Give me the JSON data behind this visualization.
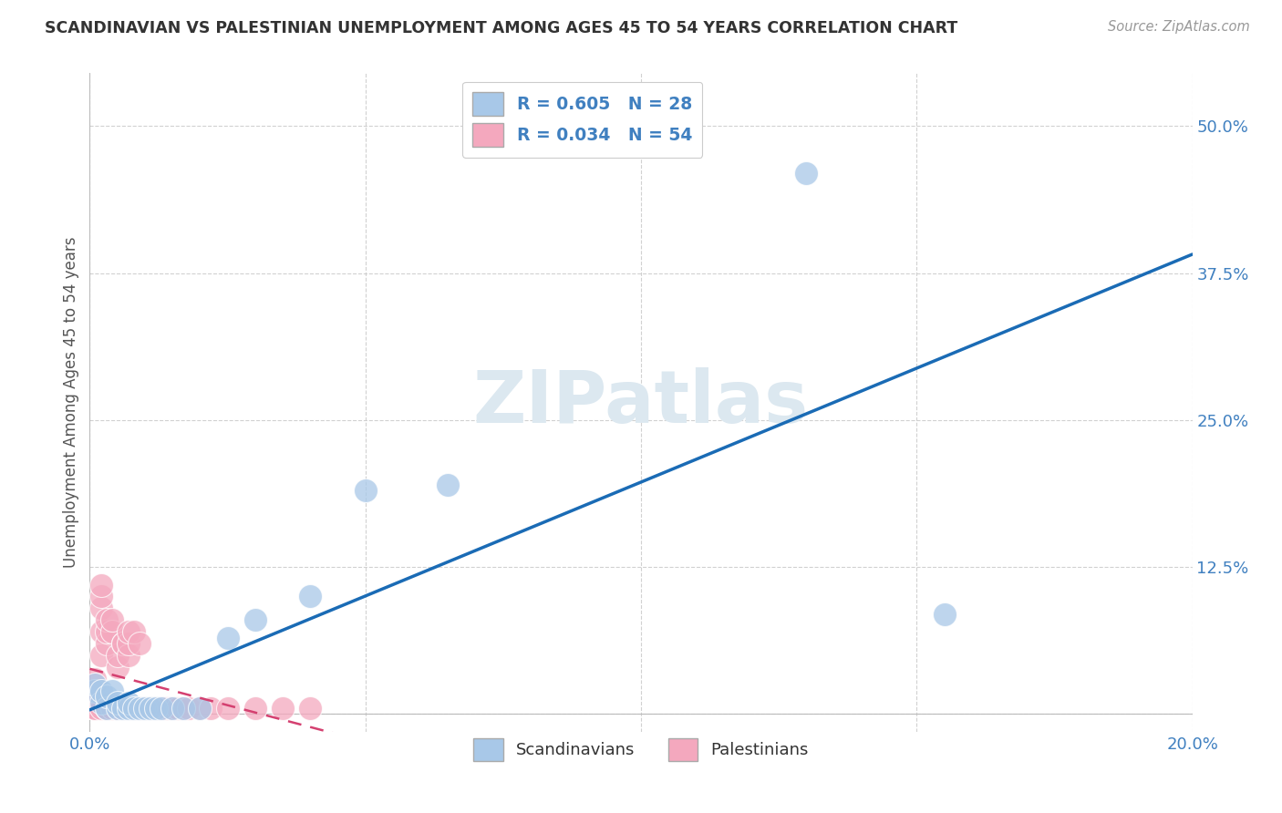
{
  "title": "SCANDINAVIAN VS PALESTINIAN UNEMPLOYMENT AMONG AGES 45 TO 54 YEARS CORRELATION CHART",
  "source": "Source: ZipAtlas.com",
  "ylabel": "Unemployment Among Ages 45 to 54 years",
  "xlim": [
    0.0,
    0.2
  ],
  "ylim": [
    -0.015,
    0.545
  ],
  "x_tick_vals": [
    0.0,
    0.05,
    0.1,
    0.15,
    0.2
  ],
  "x_tick_labels": [
    "0.0%",
    "",
    "",
    "",
    "20.0%"
  ],
  "y_tick_vals": [
    0.0,
    0.125,
    0.25,
    0.375,
    0.5
  ],
  "y_tick_labels": [
    "",
    "12.5%",
    "25.0%",
    "37.5%",
    "50.0%"
  ],
  "legend_r_scand": "R = 0.605",
  "legend_n_scand": "N = 28",
  "legend_r_pales": "R = 0.034",
  "legend_n_pales": "N = 54",
  "scand_color": "#a8c8e8",
  "pales_color": "#f4a8be",
  "scand_line_color": "#1a6bb5",
  "pales_line_color": "#d44070",
  "watermark_color": "#dce8f0",
  "background_color": "#ffffff",
  "grid_color": "#cccccc",
  "tick_color": "#4080c0",
  "title_color": "#333333",
  "source_color": "#999999",
  "ylabel_color": "#555555",
  "scandinavians_x": [
    0.001,
    0.001,
    0.002,
    0.002,
    0.003,
    0.003,
    0.004,
    0.005,
    0.005,
    0.006,
    0.007,
    0.007,
    0.008,
    0.009,
    0.01,
    0.011,
    0.012,
    0.013,
    0.015,
    0.017,
    0.02,
    0.025,
    0.03,
    0.04,
    0.05,
    0.065,
    0.13,
    0.155
  ],
  "scandinavians_y": [
    0.02,
    0.025,
    0.01,
    0.02,
    0.005,
    0.015,
    0.02,
    0.005,
    0.01,
    0.005,
    0.005,
    0.01,
    0.005,
    0.005,
    0.005,
    0.005,
    0.005,
    0.005,
    0.005,
    0.005,
    0.005,
    0.065,
    0.08,
    0.1,
    0.19,
    0.195,
    0.46,
    0.085
  ],
  "palestinians_x": [
    0.001,
    0.001,
    0.001,
    0.001,
    0.001,
    0.001,
    0.001,
    0.001,
    0.001,
    0.001,
    0.002,
    0.002,
    0.002,
    0.002,
    0.002,
    0.002,
    0.003,
    0.003,
    0.003,
    0.003,
    0.003,
    0.004,
    0.004,
    0.004,
    0.005,
    0.005,
    0.005,
    0.005,
    0.006,
    0.006,
    0.006,
    0.007,
    0.007,
    0.007,
    0.007,
    0.008,
    0.008,
    0.009,
    0.009,
    0.01,
    0.011,
    0.012,
    0.013,
    0.014,
    0.015,
    0.016,
    0.017,
    0.018,
    0.02,
    0.022,
    0.025,
    0.03,
    0.035,
    0.04
  ],
  "palestinians_y": [
    0.005,
    0.005,
    0.005,
    0.005,
    0.005,
    0.01,
    0.01,
    0.02,
    0.03,
    0.005,
    0.05,
    0.07,
    0.09,
    0.1,
    0.11,
    0.005,
    0.005,
    0.005,
    0.06,
    0.07,
    0.08,
    0.005,
    0.07,
    0.08,
    0.005,
    0.005,
    0.04,
    0.05,
    0.005,
    0.06,
    0.06,
    0.005,
    0.05,
    0.06,
    0.07,
    0.005,
    0.07,
    0.005,
    0.06,
    0.005,
    0.005,
    0.005,
    0.005,
    0.005,
    0.005,
    0.005,
    0.005,
    0.005,
    0.005,
    0.005,
    0.005,
    0.005,
    0.005,
    0.005
  ]
}
